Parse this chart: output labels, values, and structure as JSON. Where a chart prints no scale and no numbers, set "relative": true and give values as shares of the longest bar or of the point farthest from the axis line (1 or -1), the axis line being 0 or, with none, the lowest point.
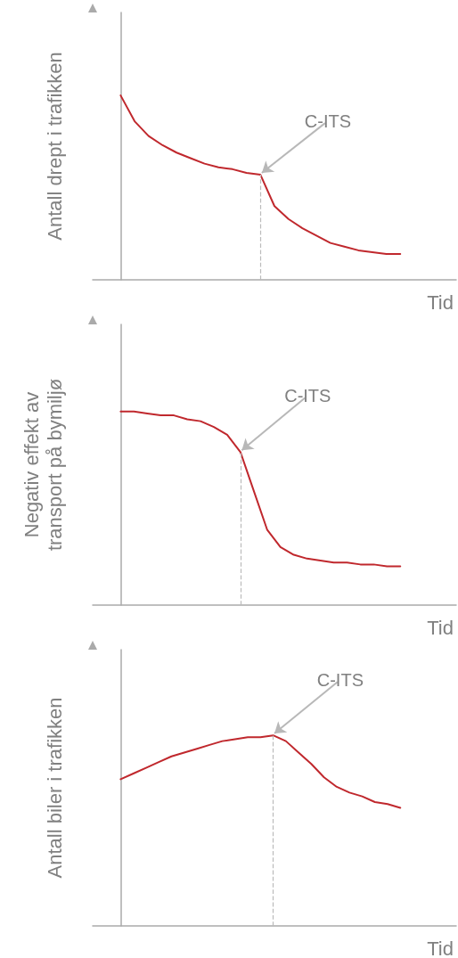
{
  "chart_data": [
    {
      "type": "line",
      "relative": true,
      "ylabel": "Antall drept i trafikken",
      "xlabel": "Tid",
      "annotations": [
        "C-ITS"
      ],
      "categories": [
        null,
        null,
        null,
        null,
        null,
        null,
        null,
        null,
        null,
        null,
        null,
        null,
        null,
        null,
        null,
        null,
        null,
        null,
        null,
        null,
        null
      ],
      "series": [
        {
          "color": "#c0282d",
          "values": [
            1.0,
            0.86,
            0.78,
            0.73,
            0.69,
            0.66,
            0.63,
            0.61,
            0.6,
            0.58,
            0.57,
            0.4,
            0.33,
            0.28,
            0.24,
            0.2,
            0.18,
            0.16,
            0.15,
            0.14,
            0.14
          ]
        }
      ],
      "grid": false,
      "marker": "none",
      "line_style": "solid"
    },
    {
      "type": "line",
      "relative": true,
      "ylabel": "Negativ effekt av transport på bymiljø",
      "xlabel": "Tid",
      "annotations": [
        "C-ITS"
      ],
      "categories": [
        null,
        null,
        null,
        null,
        null,
        null,
        null,
        null,
        null,
        null,
        null,
        null,
        null,
        null,
        null,
        null,
        null,
        null,
        null,
        null,
        null,
        null
      ],
      "series": [
        {
          "color": "#c0282d",
          "values": [
            1.0,
            1.0,
            0.99,
            0.98,
            0.98,
            0.96,
            0.95,
            0.92,
            0.88,
            0.79,
            0.59,
            0.39,
            0.3,
            0.26,
            0.24,
            0.23,
            0.22,
            0.22,
            0.21,
            0.21,
            0.2,
            0.2
          ]
        }
      ],
      "grid": false,
      "marker": "none",
      "line_style": "solid"
    },
    {
      "type": "line",
      "relative": true,
      "ylabel": "Antall biler i trafikken",
      "xlabel": "Tid",
      "annotations": [
        "C-ITS"
      ],
      "categories": [
        null,
        null,
        null,
        null,
        null,
        null,
        null,
        null,
        null,
        null,
        null,
        null,
        null,
        null,
        null,
        null,
        null,
        null,
        null,
        null,
        null,
        null,
        null
      ],
      "series": [
        {
          "color": "#c0282d",
          "values": [
            0.77,
            0.8,
            0.83,
            0.86,
            0.89,
            0.91,
            0.93,
            0.95,
            0.97,
            0.98,
            0.99,
            0.99,
            1.0,
            0.97,
            0.91,
            0.85,
            0.78,
            0.73,
            0.7,
            0.68,
            0.65,
            0.64,
            0.62
          ]
        }
      ],
      "grid": false,
      "marker": "none",
      "line_style": "solid"
    }
  ]
}
